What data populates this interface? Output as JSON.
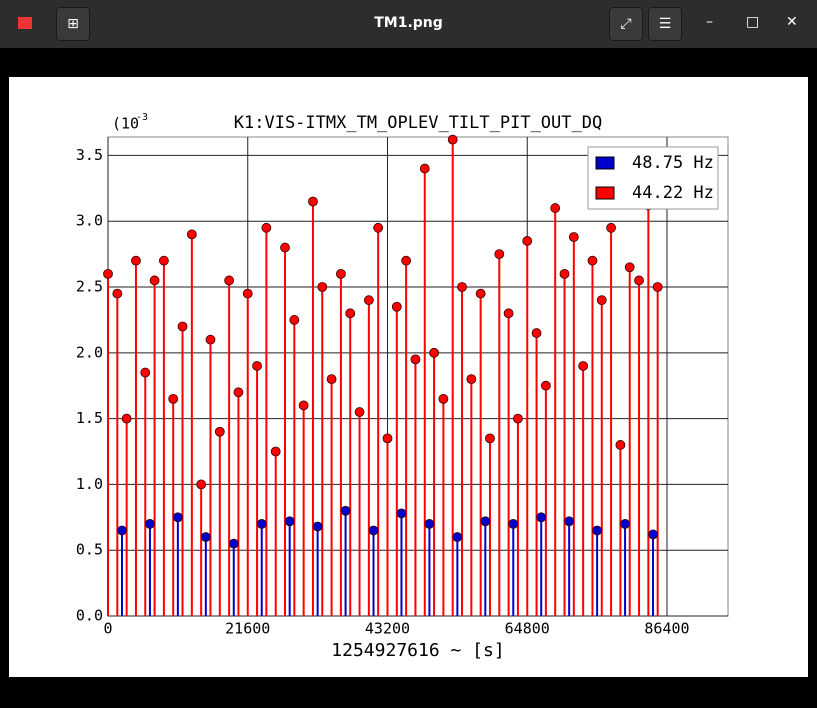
{
  "window": {
    "title": "TM1.png"
  },
  "chart_data": {
    "type": "stem",
    "title": "K1:VIS-ITMX_TM_OPLEV_TILT_PIT_OUT_DQ",
    "xlabel": "1254927616 ~ [s]",
    "offset_text": "(10",
    "offset_exponent": "-3",
    "xlim": [
      0,
      95830
    ],
    "ylim": [
      0,
      3.64
    ],
    "xticks": [
      0,
      21600,
      43200,
      64800,
      86400
    ],
    "yticks": [
      {
        "value": 0,
        "label": "0.0"
      },
      {
        "value": 0.5,
        "label": "0.5"
      },
      {
        "value": 1,
        "label": "1.0"
      },
      {
        "value": 1.5,
        "label": "1.5"
      },
      {
        "value": 2,
        "label": "2.0"
      },
      {
        "value": 2.5,
        "label": "2.5"
      },
      {
        "value": 3,
        "label": "3.0"
      },
      {
        "value": 3.5,
        "label": "3.5"
      }
    ],
    "grid": true,
    "legend": "upper right",
    "series": [
      {
        "name": "48.75 Hz",
        "color": "#0000cc",
        "x": [
          2160,
          6480,
          10800,
          15120,
          19440,
          23760,
          28080,
          32400,
          36720,
          41040,
          45360,
          49680,
          54000,
          58320,
          62640,
          66960,
          71280,
          75600,
          79920,
          84240
        ],
        "values": [
          0.65,
          0.7,
          0.75,
          0.6,
          0.55,
          0.7,
          0.72,
          0.68,
          0.8,
          0.65,
          0.78,
          0.7,
          0.6,
          0.72,
          0.7,
          0.75,
          0.72,
          0.65,
          0.7,
          0.62
        ]
      },
      {
        "name": "44.22 Hz",
        "color": "#ff0000",
        "x": [
          0,
          1440,
          2880,
          4320,
          5760,
          7200,
          8640,
          10080,
          11520,
          12960,
          14400,
          15840,
          17280,
          18720,
          20160,
          21600,
          23040,
          24480,
          25920,
          27360,
          28800,
          30240,
          31680,
          33120,
          34560,
          36000,
          37440,
          38880,
          40320,
          41760,
          43200,
          44640,
          46080,
          47520,
          48960,
          50400,
          51840,
          53280,
          54720,
          56160,
          57600,
          59040,
          60480,
          61920,
          63360,
          64800,
          66240,
          67680,
          69120,
          70560,
          72000,
          73440,
          74880,
          76320,
          77760,
          79200,
          80640,
          82080,
          83520,
          84960
        ],
        "values": [
          2.6,
          2.45,
          1.5,
          2.7,
          1.85,
          2.55,
          2.7,
          1.65,
          2.2,
          2.9,
          1.0,
          2.1,
          1.4,
          2.55,
          1.7,
          2.45,
          1.9,
          2.95,
          1.25,
          2.8,
          2.25,
          1.6,
          3.15,
          2.5,
          1.8,
          2.6,
          2.3,
          1.55,
          2.4,
          2.95,
          1.35,
          2.35,
          2.7,
          1.95,
          3.4,
          2.0,
          1.65,
          3.62,
          2.5,
          1.8,
          2.45,
          1.35,
          2.75,
          2.3,
          1.5,
          2.85,
          2.15,
          1.75,
          3.1,
          2.6,
          2.88,
          1.9,
          2.7,
          2.4,
          2.95,
          1.3,
          2.65,
          2.55,
          3.12,
          2.5
        ]
      }
    ]
  }
}
